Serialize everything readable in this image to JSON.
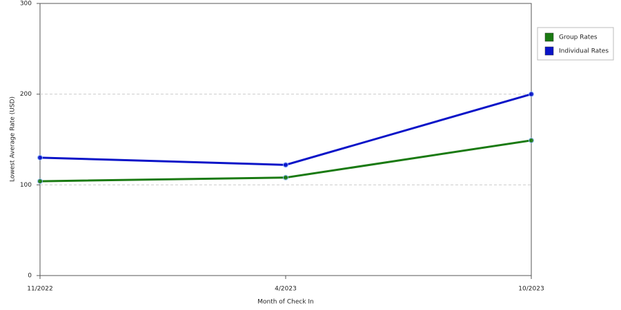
{
  "chart_data": {
    "type": "line",
    "x_label": "Month of Check In",
    "y_label": "Lowest Average Rate (USD)",
    "categories": [
      "11/2022",
      "4/2023",
      "10/2023"
    ],
    "series": [
      {
        "name": "Group Rates",
        "color": "#1a7a12",
        "values": [
          104,
          108,
          149
        ]
      },
      {
        "name": "Individual Rates",
        "color": "#0a14c8",
        "values": [
          130,
          122,
          200
        ]
      }
    ],
    "ylim": [
      0,
      300
    ],
    "yticks": [
      0,
      100,
      200,
      300
    ],
    "grid": true,
    "legend": "right"
  }
}
